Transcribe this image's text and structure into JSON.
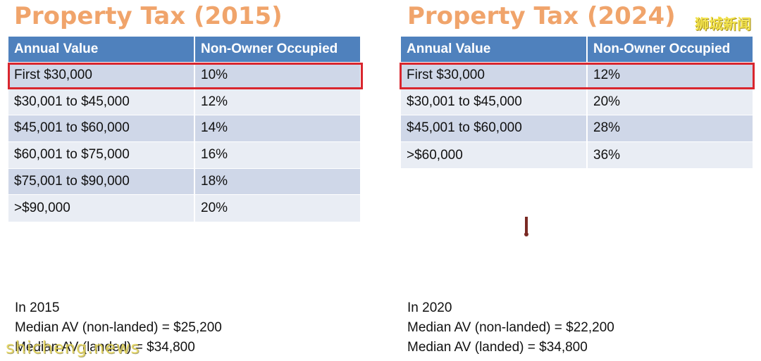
{
  "left": {
    "title": "Property Tax (2015)",
    "headers": [
      "Annual Value",
      "Non-Owner Occupied"
    ],
    "rows": [
      [
        "First $30,000",
        "10%"
      ],
      [
        "$30,001 to $45,000",
        "12%"
      ],
      [
        "$45,001 to $60,000",
        "14%"
      ],
      [
        "$60,001 to $75,000",
        "16%"
      ],
      [
        "$75,001 to $90,000",
        "18%"
      ],
      [
        ">$90,000",
        "20%"
      ]
    ],
    "notes": [
      "In 2015",
      "Median AV (non-landed) = $25,200",
      "Median AV (landed) = $34,800"
    ]
  },
  "right": {
    "title": "Property Tax (2024)",
    "headers": [
      "Annual Value",
      "Non-Owner Occupied"
    ],
    "rows": [
      [
        "First $30,000",
        "12%"
      ],
      [
        "$30,001 to $45,000",
        "20%"
      ],
      [
        "$45,001 to $60,000",
        "28%"
      ],
      [
        ">$60,000",
        "36%"
      ]
    ],
    "notes": [
      "In 2020",
      "Median AV (non-landed) = $22,200",
      "Median AV (landed) = $34,800"
    ]
  },
  "watermarks": {
    "top_right": "狮城新闻",
    "bottom_left": "shicheng.news"
  },
  "colors": {
    "title": "#f0a46b",
    "header_bg": "#4f81bd",
    "row_odd": "#cfd7e8",
    "row_even": "#e9edf4",
    "highlight_border": "#d9262e"
  }
}
